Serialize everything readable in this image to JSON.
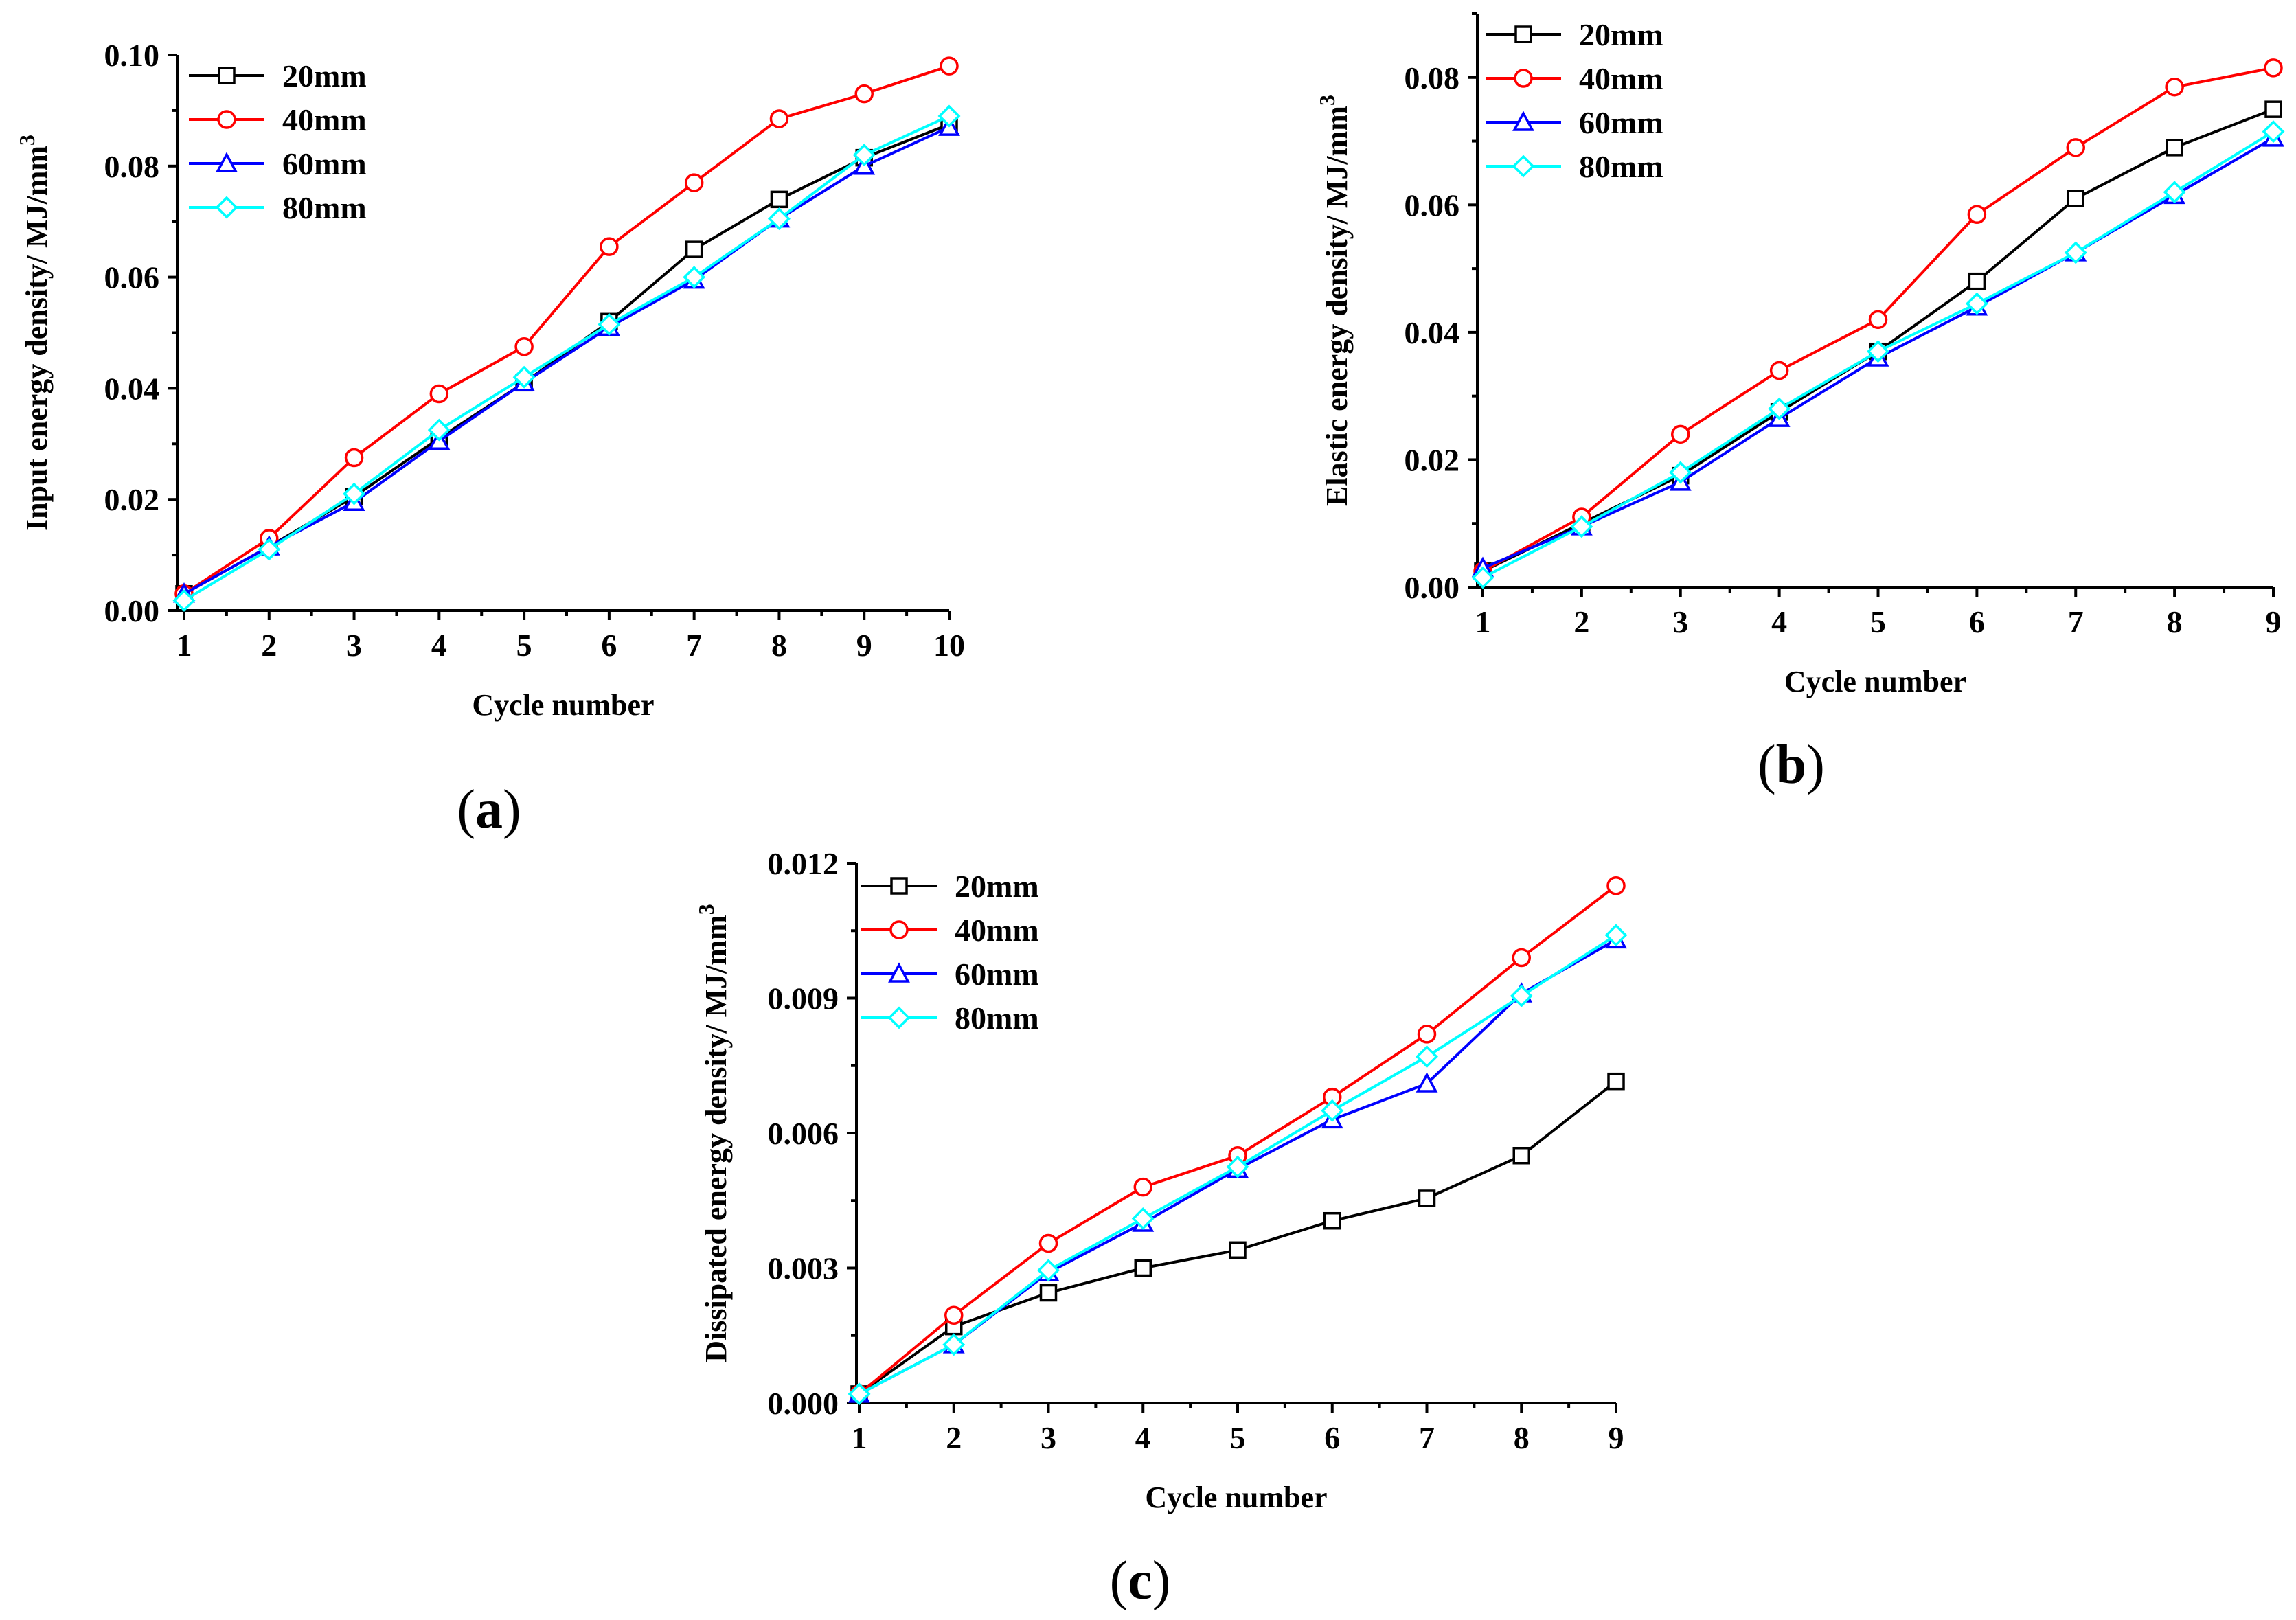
{
  "colors": {
    "20mm": "#000000",
    "40mm": "#ff0000",
    "60mm": "#0000ff",
    "80mm": "#00ffff"
  },
  "marker_shapes": {
    "20mm": "square",
    "40mm": "circle",
    "60mm": "triangle",
    "80mm": "diamond"
  },
  "chart_data": [
    {
      "id": "a",
      "type": "line",
      "panel_label": "a",
      "xlabel": "Cycle number",
      "ylabel": "Input energy density/ MJ/mm",
      "ylabel_sup": "3",
      "xlim": [
        1,
        10
      ],
      "ylim": [
        0,
        0.1
      ],
      "xticks": [
        1,
        2,
        3,
        4,
        5,
        6,
        7,
        8,
        9,
        10
      ],
      "yticks": [
        "0.00",
        "0.02",
        "0.04",
        "0.06",
        "0.08",
        "0.10"
      ],
      "x": [
        1,
        2,
        3,
        4,
        5,
        6,
        7,
        8,
        9,
        10
      ],
      "legend": [
        "20mm",
        "40mm",
        "60mm",
        "80mm"
      ],
      "series": [
        {
          "name": "20mm",
          "values": [
            0.003,
            0.0115,
            0.0205,
            0.031,
            0.041,
            0.052,
            0.065,
            0.074,
            0.0815,
            0.0875
          ]
        },
        {
          "name": "40mm",
          "values": [
            0.003,
            0.013,
            0.0275,
            0.039,
            0.0475,
            0.0655,
            0.077,
            0.0885,
            0.093,
            0.098
          ]
        },
        {
          "name": "60mm",
          "values": [
            0.003,
            0.0115,
            0.0195,
            0.0305,
            0.041,
            0.051,
            0.0595,
            0.0705,
            0.08,
            0.087
          ]
        },
        {
          "name": "80mm",
          "values": [
            0.0018,
            0.011,
            0.021,
            0.0325,
            0.042,
            0.0515,
            0.06,
            0.0705,
            0.082,
            0.089
          ]
        }
      ]
    },
    {
      "id": "b",
      "type": "line",
      "panel_label": "b",
      "xlabel": "Cycle number",
      "ylabel": "Elastic energy density/ MJ/mm",
      "ylabel_sup": "3",
      "xlim": [
        1,
        9
      ],
      "ylim": [
        0,
        0.09
      ],
      "xticks": [
        1,
        2,
        3,
        4,
        5,
        6,
        7,
        8,
        9
      ],
      "yticks": [
        "0.00",
        "0.02",
        "0.04",
        "0.06",
        "0.08"
      ],
      "x": [
        1,
        2,
        3,
        4,
        5,
        6,
        7,
        8,
        9
      ],
      "legend": [
        "20mm",
        "40mm",
        "60mm",
        "80mm"
      ],
      "series": [
        {
          "name": "20mm",
          "values": [
            0.0025,
            0.01,
            0.0175,
            0.0275,
            0.037,
            0.048,
            0.061,
            0.069,
            0.075
          ]
        },
        {
          "name": "40mm",
          "values": [
            0.0025,
            0.011,
            0.024,
            0.034,
            0.042,
            0.0585,
            0.069,
            0.0785,
            0.0815
          ]
        },
        {
          "name": "60mm",
          "values": [
            0.003,
            0.0095,
            0.0165,
            0.0265,
            0.036,
            0.044,
            0.0525,
            0.0615,
            0.0705
          ]
        },
        {
          "name": "80mm",
          "values": [
            0.0015,
            0.0095,
            0.018,
            0.028,
            0.037,
            0.0445,
            0.0525,
            0.062,
            0.0715
          ]
        }
      ]
    },
    {
      "id": "c",
      "type": "line",
      "panel_label": "c",
      "xlabel": "Cycle number",
      "ylabel": "Dissipated energy density/ MJ/mm",
      "ylabel_sup": "3",
      "xlim": [
        1,
        9
      ],
      "ylim": [
        0,
        0.012
      ],
      "xticks": [
        1,
        2,
        3,
        4,
        5,
        6,
        7,
        8,
        9
      ],
      "yticks": [
        "0.000",
        "0.003",
        "0.006",
        "0.009",
        "0.012"
      ],
      "x": [
        1,
        2,
        3,
        4,
        5,
        6,
        7,
        8,
        9
      ],
      "legend": [
        "20mm",
        "40mm",
        "60mm",
        "80mm"
      ],
      "series": [
        {
          "name": "20mm",
          "values": [
            0.0002,
            0.0017,
            0.00245,
            0.003,
            0.0034,
            0.00405,
            0.00455,
            0.0055,
            0.00715
          ]
        },
        {
          "name": "40mm",
          "values": [
            0.0002,
            0.00195,
            0.00355,
            0.0048,
            0.0055,
            0.0068,
            0.0082,
            0.0099,
            0.0115
          ]
        },
        {
          "name": "60mm",
          "values": [
            0.0002,
            0.0013,
            0.0029,
            0.004,
            0.0052,
            0.0063,
            0.0071,
            0.0091,
            0.0103
          ]
        },
        {
          "name": "80mm",
          "values": [
            0.0002,
            0.0013,
            0.00295,
            0.0041,
            0.00525,
            0.0065,
            0.0077,
            0.00905,
            0.0104
          ]
        }
      ]
    }
  ]
}
